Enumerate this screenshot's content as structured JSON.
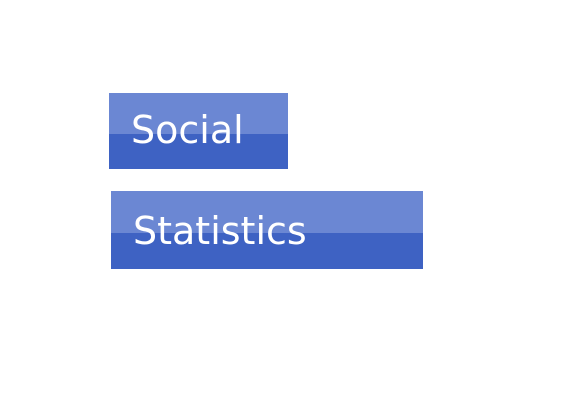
{
  "menu": {
    "items": [
      {
        "label": "Social"
      },
      {
        "label": "Statistics"
      }
    ]
  },
  "colors": {
    "button_top": "#6b87d3",
    "button_bottom": "#3e62c3",
    "text": "#ffffff",
    "background": "#ffffff"
  }
}
